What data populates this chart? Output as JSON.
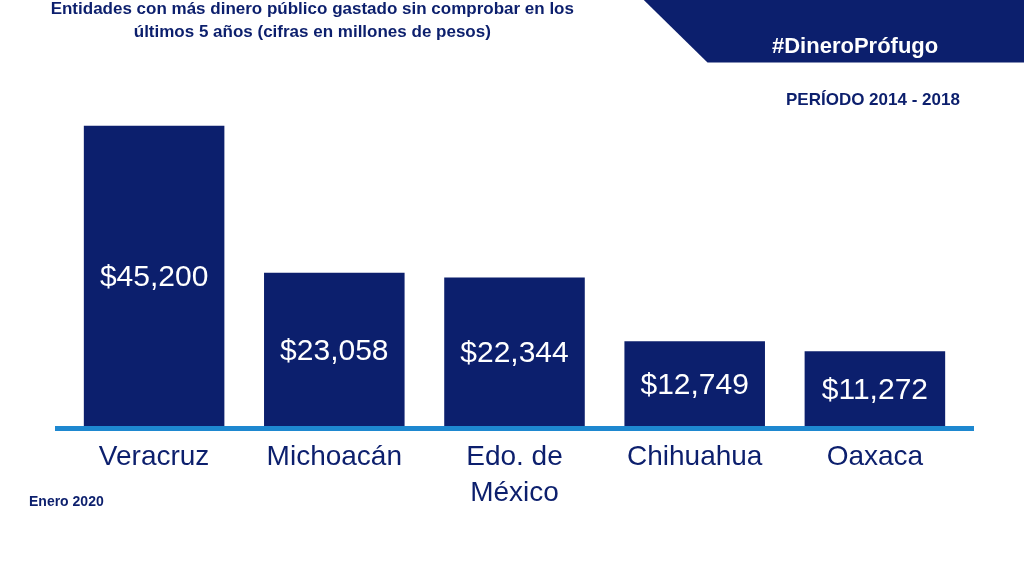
{
  "chart_data": {
    "type": "bar",
    "title": "Entidades con más dinero público gastado sin comprobar en los últimos 5 años (cifras en millones de pesos)",
    "categories": [
      "Veracruz",
      "Michoacán",
      "Edo. de México",
      "Chihuahua",
      "Oaxaca"
    ],
    "values": [
      45200,
      23058,
      22344,
      12749,
      11272
    ],
    "value_labels": [
      "$45,200",
      "$23,058",
      "$22,344",
      "$12,749",
      "$11,272"
    ],
    "color": "#0c1f6d",
    "annotations": [
      "#DineroPrófugo",
      "PERÍODO 2014 - 2018",
      "Enero 2020"
    ],
    "legend": false
  }
}
